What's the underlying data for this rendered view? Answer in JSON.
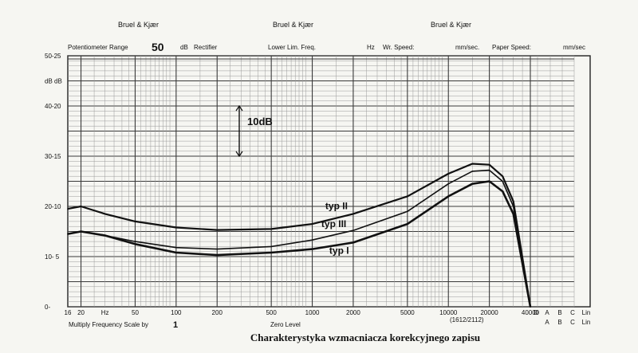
{
  "chart_data": {
    "type": "line",
    "x_scale": "log",
    "xlim": [
      16,
      40000
    ],
    "ylim": [
      0,
      50
    ],
    "y_unit_label": "dB",
    "header": {
      "brand": "Bruel & Kjær",
      "brand_repeat": [
        "Bruel & Kjær",
        "Bruel & Kjær"
      ]
    },
    "settings": {
      "potentiometer_label": "Potentiometer Range",
      "potentiometer_value": "50",
      "potentiometer_unit": "dB",
      "rectifier_label": "Rectifier",
      "lower_lim_label": "Lower Lim. Freq.",
      "lower_lim_unit": "Hz",
      "wr_speed_label": "Wr. Speed:",
      "wr_speed_unit": "mm/sec.",
      "paper_speed_label": "Paper Speed:",
      "paper_speed_unit": "mm/sec"
    },
    "y_ticks": [
      {
        "label": "50-25",
        "value": 50
      },
      {
        "label": "dB dB",
        "value": 45
      },
      {
        "label": "40-20",
        "value": 40
      },
      {
        "label": "30-15",
        "value": 30
      },
      {
        "label": "20-10",
        "value": 20
      },
      {
        "label": "10- 5",
        "value": 10
      },
      {
        "label": "0-",
        "value": 0
      }
    ],
    "x_ticks": [
      {
        "label": "16",
        "value": 16
      },
      {
        "label": "20",
        "value": 20
      },
      {
        "label": "Hz",
        "value": 30
      },
      {
        "label": "50",
        "value": 50
      },
      {
        "label": "100",
        "value": 100
      },
      {
        "label": "200",
        "value": 200
      },
      {
        "label": "500",
        "value": 500
      },
      {
        "label": "1000",
        "value": 1000
      },
      {
        "label": "2000",
        "value": 2000
      },
      {
        "label": "5000",
        "value": 5000
      },
      {
        "label": "10000",
        "value": 10000
      },
      {
        "label": "20000",
        "value": 20000
      },
      {
        "label": "40000",
        "value": 40000
      }
    ],
    "weight_labels_top": [
      "D",
      "A",
      "B",
      "C",
      "Lin"
    ],
    "weight_labels_bottom": [
      "A",
      "B",
      "C",
      "Lin"
    ],
    "scale_annotation": "10dB",
    "series": [
      {
        "name": "typ II",
        "x": [
          16,
          20,
          30,
          50,
          100,
          200,
          500,
          1000,
          2000,
          5000,
          10000,
          15000,
          20000,
          25000,
          30000,
          40000
        ],
        "y": [
          19.5,
          20,
          18.5,
          17,
          15.8,
          15.3,
          15.5,
          16.5,
          18.5,
          22,
          26.5,
          28.5,
          28.3,
          26,
          21,
          0
        ]
      },
      {
        "name": "typ III",
        "x": [
          16,
          20,
          30,
          50,
          100,
          200,
          500,
          1000,
          2000,
          5000,
          10000,
          15000,
          20000,
          25000,
          30000,
          40000
        ],
        "y": [
          14.5,
          15,
          14.2,
          13,
          11.8,
          11.5,
          12,
          13.3,
          15.2,
          19,
          24.5,
          27,
          27.2,
          25,
          20,
          0
        ]
      },
      {
        "name": "typ I",
        "x": [
          16,
          20,
          30,
          50,
          100,
          200,
          500,
          1000,
          2000,
          5000,
          10000,
          15000,
          20000,
          25000,
          30000,
          40000
        ],
        "y": [
          14.5,
          15,
          14.2,
          12.5,
          10.8,
          10.3,
          10.8,
          11.5,
          12.8,
          16.5,
          22,
          24.5,
          25,
          23,
          18.5,
          0
        ]
      }
    ],
    "bottom": {
      "scale_label": "Multiply Frequency Scale by",
      "scale_value": "1",
      "zero_level": "Zero Level",
      "part_no": "(1612/2112)"
    },
    "title": "Charakterystyka wzmacniacza korekcyjnego zapisu"
  }
}
